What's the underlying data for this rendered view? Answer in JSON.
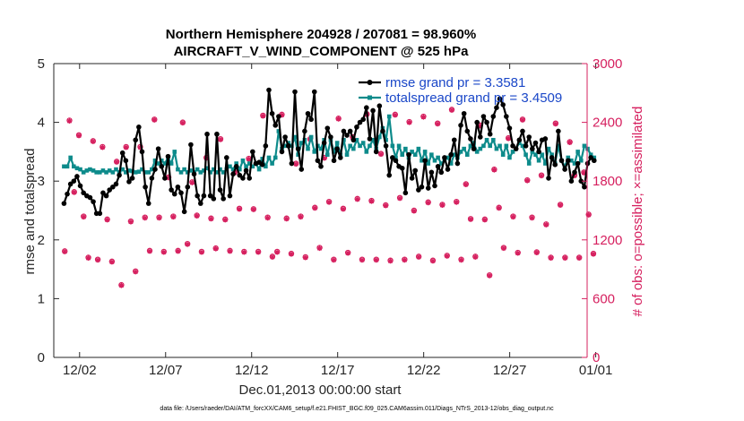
{
  "chart_data": {
    "type": "line",
    "title_line1": "Northern Hemisphere 204928 / 207081 = 98.960%",
    "title_line2": "AIRCRAFT_V_WIND_COMPONENT @ 525 hPa",
    "xlabel": "Dec.01,2013 00:00:00 start",
    "ylabel_left": "rmse and totalspread",
    "ylabel_right": "# of obs: o=possible; ×=assimilated",
    "footer": "data file: /Users/raeder/DAI/ATM_forcXX/CAM6_setup/f.e21.FHIST_BGC.f09_025.CAM6assim.011/Diags_NTrS_2013-12/obs_diag_output.nc",
    "xlim": [
      0.5,
      31.5
    ],
    "ylim_left": [
      0,
      5
    ],
    "ylim_right": [
      0,
      3000
    ],
    "x_ticks": [
      {
        "value": 2,
        "label": "12/02"
      },
      {
        "value": 7,
        "label": "12/07"
      },
      {
        "value": 12,
        "label": "12/12"
      },
      {
        "value": 17,
        "label": "12/17"
      },
      {
        "value": 22,
        "label": "12/22"
      },
      {
        "value": 27,
        "label": "12/27"
      },
      {
        "value": 32,
        "label": "01/01"
      }
    ],
    "y_left_ticks": [
      0,
      1,
      2,
      3,
      4,
      5
    ],
    "y_right_ticks": [
      0,
      600,
      1200,
      1800,
      2400,
      3000
    ],
    "colors": {
      "rmse": "#000000",
      "spread": "#0d8b8b",
      "obs": "#d6205f",
      "legend_text": "#1a47c8"
    },
    "series": [
      {
        "name": "rmse grand pr = 3.3581",
        "axis": "left",
        "marker": "circle",
        "values": [
          2.62,
          2.78,
          2.95,
          3.0,
          3.08,
          2.92,
          2.8,
          2.75,
          2.72,
          2.65,
          2.45,
          2.45,
          2.8,
          2.75,
          2.85,
          2.9,
          2.95,
          3.1,
          3.48,
          3.35,
          2.99,
          3.05,
          3.7,
          3.92,
          3.5,
          2.9,
          2.62,
          3.05,
          3.2,
          3.55,
          3.25,
          3.05,
          3.42,
          2.85,
          2.78,
          2.9,
          2.8,
          2.48,
          2.9,
          3.62,
          3.12,
          2.75,
          2.62,
          2.75,
          3.8,
          2.75,
          2.7,
          3.8,
          2.85,
          2.7,
          3.4,
          2.75,
          3.12,
          3.25,
          3.1,
          3.05,
          3.18,
          3.05,
          3.5,
          3.3,
          3.32,
          3.28,
          3.6,
          4.55,
          4.15,
          3.95,
          4.1,
          3.5,
          3.75,
          3.6,
          3.3,
          4.52,
          3.55,
          3.2,
          3.85,
          4.15,
          4.05,
          4.52,
          3.35,
          3.25,
          3.65,
          3.9,
          3.75,
          3.35,
          3.55,
          3.4,
          3.85,
          3.78,
          3.85,
          3.7,
          3.92,
          4.0,
          4.05,
          4.25,
          3.72,
          4.2,
          3.5,
          4.28,
          3.85,
          3.6,
          3.1,
          3.4,
          3.35,
          3.25,
          3.22,
          2.8,
          3.45,
          3.05,
          3.18,
          2.85,
          2.9,
          3.35,
          2.88,
          3.15,
          2.92,
          3.25,
          3.15,
          3.4,
          3.2,
          3.45,
          3.7,
          3.3,
          3.95,
          4.15,
          3.85,
          3.72,
          3.55,
          4.0,
          3.75,
          4.1,
          4.0,
          3.8,
          4.1,
          4.25,
          4.4,
          4.3,
          4.1,
          3.9,
          3.6,
          3.55,
          3.7,
          3.85,
          3.6,
          3.75,
          3.55,
          3.65,
          3.5,
          3.7,
          3.72,
          3.05,
          3.4,
          3.28,
          3.85,
          3.35,
          3.2,
          3.35,
          3.0,
          3.15,
          3.3,
          3.0,
          2.9,
          3.3,
          3.4,
          3.35
        ]
      },
      {
        "name": "totalspread grand pr = 3.4509",
        "axis": "left",
        "marker": "square",
        "values": [
          3.25,
          3.25,
          3.4,
          3.25,
          3.22,
          3.2,
          3.15,
          3.18,
          3.2,
          3.18,
          3.15,
          3.15,
          3.18,
          3.15,
          3.18,
          3.15,
          3.2,
          3.15,
          3.2,
          3.15,
          3.18,
          3.17,
          3.15,
          3.16,
          3.2,
          3.15,
          3.15,
          3.2,
          3.35,
          3.3,
          3.35,
          3.3,
          3.4,
          3.3,
          3.5,
          3.2,
          3.15,
          3.2,
          3.15,
          3.18,
          3.15,
          3.2,
          3.15,
          3.18,
          3.22,
          3.15,
          3.2,
          3.15,
          3.2,
          3.15,
          3.2,
          3.25,
          3.2,
          3.3,
          3.2,
          3.35,
          3.25,
          3.3,
          3.25,
          3.3,
          3.2,
          3.38,
          3.25,
          3.4,
          3.3,
          3.4,
          3.85,
          3.55,
          3.6,
          3.65,
          3.6,
          3.75,
          3.45,
          3.65,
          3.7,
          3.55,
          3.75,
          3.5,
          3.6,
          3.55,
          3.7,
          3.45,
          3.7,
          3.5,
          3.65,
          3.45,
          3.7,
          3.45,
          3.6,
          3.55,
          3.7,
          3.6,
          3.65,
          3.5,
          3.6,
          3.7,
          3.55,
          3.75,
          3.9,
          3.7,
          4.1,
          3.6,
          3.4,
          3.6,
          3.45,
          3.55,
          3.4,
          3.5,
          3.45,
          3.55,
          3.35,
          3.5,
          3.3,
          3.45,
          3.35,
          3.4,
          3.3,
          3.35,
          3.4,
          3.3,
          3.45,
          3.4,
          3.5,
          3.55,
          3.45,
          3.6,
          3.65,
          3.5,
          3.55,
          3.6,
          3.7,
          3.6,
          3.7,
          3.55,
          3.6,
          3.45,
          3.6,
          3.4,
          3.5,
          3.55,
          3.65,
          3.6,
          3.45,
          3.3,
          3.5,
          3.45,
          3.35,
          3.45,
          3.3,
          3.55,
          3.45,
          3.3,
          3.6,
          3.35,
          3.25,
          3.4,
          3.35,
          3.3,
          3.5,
          3.35,
          3.6,
          3.55,
          3.45,
          3.4
        ]
      },
      {
        "name": "obs possible",
        "axis": "right",
        "marker": "circle-open",
        "values": [
          1085,
          2420,
          1690,
          2270,
          1440,
          1020,
          2210,
          1000,
          2150,
          1410,
          980,
          2000,
          740,
          2150,
          1390,
          880,
          2150,
          1430,
          1090,
          2430,
          1430,
          1080,
          1840,
          1440,
          1090,
          2400,
          1160,
          1790,
          1450,
          1080,
          2040,
          1420,
          1115,
          2230,
          1410,
          1090,
          1890,
          1520,
          1080,
          2030,
          1515,
          1080,
          2470,
          1430,
          1030,
          1080,
          2480,
          1420,
          1060,
          1980,
          1440,
          1025,
          2230,
          1530,
          1120,
          2040,
          1590,
          1000,
          2440,
          1520,
          1070,
          2250,
          1620,
          1000,
          2485,
          1600,
          1000,
          2080,
          1555,
          990,
          2480,
          1630,
          1000,
          2405,
          1500,
          1030,
          2460,
          1585,
          990,
          2390,
          1560,
          1040,
          2530,
          1590,
          1000,
          1770,
          1415,
          1030,
          2370,
          1410,
          840,
          1920,
          1530,
          1120,
          2240,
          1440,
          1070,
          2430,
          1810,
          1430,
          1075,
          1860,
          1360,
          1020,
          2390,
          1560,
          1020,
          2200,
          1860,
          1020,
          1890,
          1460,
          1060
        ]
      },
      {
        "name": "obs assimilated",
        "axis": "right",
        "marker": "cross",
        "values": [
          1080,
          2415,
          1685,
          2265,
          1435,
          1015,
          2205,
          995,
          2145,
          1405,
          975,
          1995,
          735,
          2145,
          1385,
          875,
          2145,
          1425,
          1085,
          2425,
          1425,
          1075,
          1835,
          1435,
          1085,
          2395,
          1155,
          1785,
          1445,
          1075,
          2035,
          1415,
          1110,
          2225,
          1405,
          1085,
          1885,
          1515,
          1075,
          2025,
          1510,
          1075,
          2465,
          1425,
          1025,
          1075,
          2475,
          1415,
          1055,
          1975,
          1435,
          1020,
          2225,
          1525,
          1115,
          2035,
          1585,
          995,
          2435,
          1515,
          1065,
          2245,
          1615,
          995,
          2480,
          1595,
          995,
          2075,
          1550,
          985,
          2475,
          1625,
          995,
          2400,
          1495,
          1025,
          2455,
          1580,
          985,
          2385,
          1555,
          1035,
          2525,
          1585,
          995,
          1765,
          1410,
          1025,
          2365,
          1405,
          835,
          1915,
          1525,
          1115,
          2235,
          1435,
          1065,
          2425,
          1805,
          1425,
          1070,
          1855,
          1355,
          1015,
          2385,
          1555,
          1015,
          2195,
          1855,
          1015,
          1885,
          1455,
          1055
        ]
      }
    ]
  }
}
